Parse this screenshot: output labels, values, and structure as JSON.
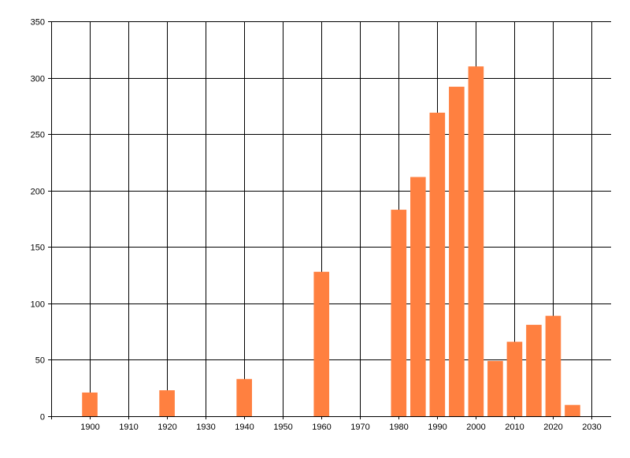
{
  "chart_data": {
    "type": "bar",
    "title": "",
    "xlabel": "",
    "ylabel": "",
    "x": [
      1900,
      1920,
      1940,
      1960,
      1980,
      1985,
      1990,
      1995,
      2000,
      2005,
      2010,
      2015,
      2020,
      2025
    ],
    "values": [
      21,
      23,
      33,
      128,
      183,
      212,
      269,
      292,
      310,
      49,
      66,
      81,
      89,
      10
    ],
    "bar_width_years": 4,
    "xlim": [
      1890,
      2035
    ],
    "ylim": [
      0,
      350
    ],
    "xticks": [
      1900,
      1910,
      1920,
      1930,
      1940,
      1950,
      1960,
      1970,
      1980,
      1990,
      2000,
      2010,
      2020,
      2030
    ],
    "yticks": [
      0,
      50,
      100,
      150,
      200,
      250,
      300,
      350
    ],
    "grid": true,
    "bar_color": "#FF8040",
    "grid_color": "#000000"
  }
}
